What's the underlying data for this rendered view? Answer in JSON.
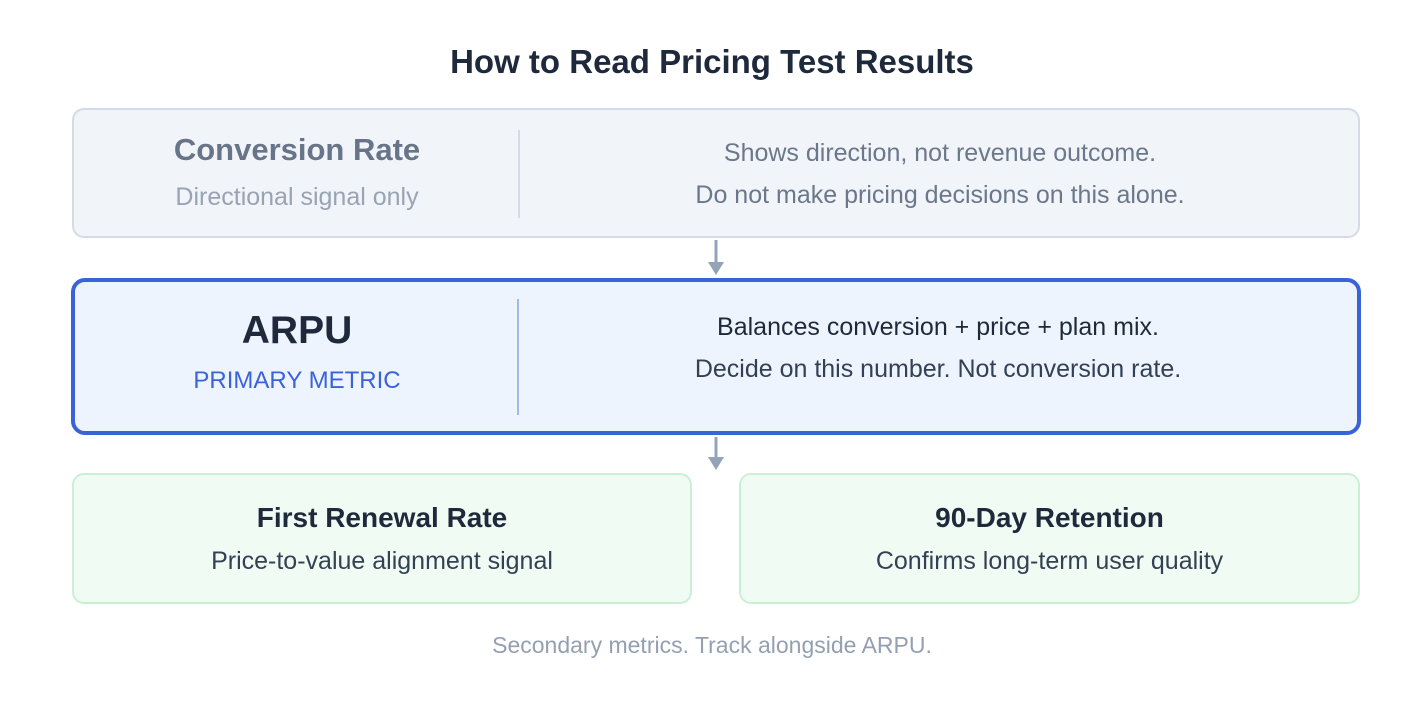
{
  "title": "How to Read Pricing Test Results",
  "conversion": {
    "name": "Conversion Rate",
    "subtitle": "Directional signal only",
    "line1": "Shows direction, not revenue outcome.",
    "line2": "Do not make pricing decisions on this alone."
  },
  "arpu": {
    "name": "ARPU",
    "subtitle": "PRIMARY METRIC",
    "line1": "Balances conversion + price + plan mix.",
    "line2": "Decide on this number. Not conversion rate."
  },
  "secondary": [
    {
      "name": "First Renewal Rate",
      "description": "Price-to-value alignment signal"
    },
    {
      "name": "90-Day Retention",
      "description": "Confirms long-term user quality"
    }
  ],
  "footnote": "Secondary metrics. Track alongside ARPU.",
  "colors": {
    "primary_accent": "#3a63d8",
    "secondary_green": "#c9efd5",
    "muted_gray": "#d5dbe4",
    "arrow": "#94a3b8"
  }
}
